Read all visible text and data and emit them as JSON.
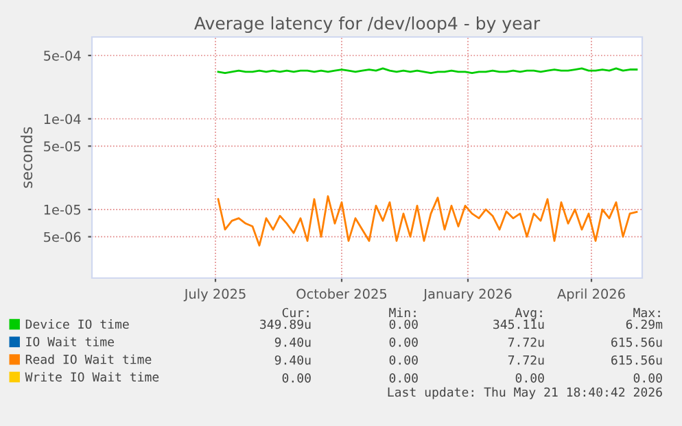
{
  "chart_data": {
    "type": "line",
    "title": "Average latency for /dev/loop4 - by year",
    "ylabel": "seconds",
    "x": [
      "2025-07-03",
      "2025-07-08",
      "2025-07-13",
      "2025-07-18",
      "2025-07-23",
      "2025-07-28",
      "2025-08-02",
      "2025-08-07",
      "2025-08-12",
      "2025-08-17",
      "2025-08-22",
      "2025-08-27",
      "2025-09-01",
      "2025-09-06",
      "2025-09-11",
      "2025-09-16",
      "2025-09-21",
      "2025-09-26",
      "2025-10-01",
      "2025-10-06",
      "2025-10-11",
      "2025-10-16",
      "2025-10-21",
      "2025-10-26",
      "2025-10-31",
      "2025-11-05",
      "2025-11-10",
      "2025-11-15",
      "2025-11-20",
      "2025-11-25",
      "2025-11-30",
      "2025-12-05",
      "2025-12-10",
      "2025-12-15",
      "2025-12-20",
      "2025-12-25",
      "2025-12-30",
      "2026-01-04",
      "2026-01-09",
      "2026-01-14",
      "2026-01-19",
      "2026-01-24",
      "2026-01-29",
      "2026-02-03",
      "2026-02-08",
      "2026-02-13",
      "2026-02-18",
      "2026-02-23",
      "2026-02-28",
      "2026-03-05",
      "2026-03-10",
      "2026-03-15",
      "2026-03-20",
      "2026-03-25",
      "2026-03-30",
      "2026-04-04",
      "2026-04-09",
      "2026-04-14",
      "2026-04-19",
      "2026-04-24",
      "2026-04-29",
      "2026-05-04"
    ],
    "series": [
      {
        "name": "Device IO time",
        "color": "#00cc00",
        "values": [
          0.00033,
          0.00032,
          0.00033,
          0.00034,
          0.00033,
          0.00033,
          0.00034,
          0.00033,
          0.00034,
          0.00033,
          0.00034,
          0.00033,
          0.00034,
          0.00034,
          0.00033,
          0.00034,
          0.00033,
          0.00034,
          0.00035,
          0.00034,
          0.00033,
          0.00034,
          0.00035,
          0.00034,
          0.00036,
          0.00034,
          0.00033,
          0.00034,
          0.00033,
          0.00034,
          0.00033,
          0.00032,
          0.00033,
          0.00033,
          0.00034,
          0.00033,
          0.00033,
          0.00032,
          0.00033,
          0.00033,
          0.00034,
          0.00033,
          0.00033,
          0.00034,
          0.00033,
          0.00034,
          0.00034,
          0.00033,
          0.00034,
          0.00035,
          0.00034,
          0.00034,
          0.00035,
          0.00036,
          0.00034,
          0.00034,
          0.00035,
          0.00034,
          0.00036,
          0.00034,
          0.00035,
          0.00035
        ]
      },
      {
        "name": "IO Wait time",
        "color": "#0066b3",
        "values": [
          null,
          null,
          null,
          null,
          null,
          null,
          null,
          null,
          null,
          null,
          null,
          null,
          null,
          null,
          null,
          null,
          null,
          null,
          null,
          null,
          null,
          null,
          null,
          null,
          null,
          null,
          null,
          null,
          null,
          null,
          null,
          null,
          null,
          null,
          null,
          null,
          null,
          null,
          null,
          null,
          null,
          null,
          null,
          null,
          null,
          null,
          null,
          null,
          null,
          null,
          null,
          null,
          null,
          null,
          null,
          null,
          null,
          null,
          null,
          null,
          null,
          null
        ]
      },
      {
        "name": "Read IO Wait time",
        "color": "#ff8000",
        "values": [
          1.3e-05,
          6e-06,
          7.5e-06,
          8e-06,
          7e-06,
          6.5e-06,
          4e-06,
          8e-06,
          6e-06,
          8.5e-06,
          7e-06,
          5.5e-06,
          8e-06,
          4.5e-06,
          1.3e-05,
          5e-06,
          1.4e-05,
          7e-06,
          1.2e-05,
          4.5e-06,
          8e-06,
          6e-06,
          4.5e-06,
          1.1e-05,
          7.5e-06,
          1.2e-05,
          4.5e-06,
          9e-06,
          5e-06,
          1.1e-05,
          4.5e-06,
          9e-06,
          1.35e-05,
          6e-06,
          1.1e-05,
          6.5e-06,
          1.1e-05,
          9e-06,
          8e-06,
          1e-05,
          8.5e-06,
          6e-06,
          9.5e-06,
          8e-06,
          9e-06,
          5e-06,
          9e-06,
          7.5e-06,
          1.3e-05,
          4.5e-06,
          1.2e-05,
          7e-06,
          1e-05,
          6e-06,
          9e-06,
          4.5e-06,
          1e-05,
          8e-06,
          1.2e-05,
          5e-06,
          9e-06,
          9.4e-06
        ]
      },
      {
        "name": "Write IO Wait time",
        "color": "#ffcc00",
        "values": [
          null,
          null,
          null,
          null,
          null,
          null,
          null,
          null,
          null,
          null,
          null,
          null,
          null,
          null,
          null,
          null,
          null,
          null,
          null,
          null,
          null,
          null,
          null,
          null,
          null,
          null,
          null,
          null,
          null,
          null,
          null,
          null,
          null,
          null,
          null,
          null,
          null,
          null,
          null,
          null,
          null,
          null,
          null,
          null,
          null,
          null,
          null,
          null,
          null,
          null,
          null,
          null,
          null,
          null,
          null,
          null,
          null,
          null,
          null,
          null,
          null,
          null
        ]
      }
    ],
    "log": "y",
    "xlim": [
      "2025-04-02",
      "2026-05-08"
    ],
    "ylim": [
      1.75e-06,
      0.0008
    ],
    "xticks": [
      {
        "value": "2025-07-01",
        "label": "July 2025"
      },
      {
        "value": "2025-10-01",
        "label": "October 2025"
      },
      {
        "value": "2026-01-01",
        "label": "January 2026"
      },
      {
        "value": "2026-04-01",
        "label": "April 2026"
      }
    ],
    "yticks": [
      {
        "value": 5e-06,
        "label": "5e-06"
      },
      {
        "value": 1e-05,
        "label": "1e-05"
      },
      {
        "value": 5e-05,
        "label": "5e-05"
      },
      {
        "value": 0.0001,
        "label": "1e-04"
      },
      {
        "value": 0.0005,
        "label": "5e-04"
      }
    ],
    "grid": true,
    "legend": "bottom left",
    "annotations": [
      "Cur:",
      "Min:",
      "Avg:",
      "Max:",
      "349.89u",
      "0.00",
      "345.11u",
      "6.29m",
      "9.40u",
      "0.00",
      "7.72u",
      "615.56u",
      "9.40u",
      "0.00",
      "7.72u",
      "615.56u",
      "0.00",
      "0.00",
      "0.00",
      "0.00",
      "Last update: Thu May 21 18:40:42 2026"
    ]
  }
}
